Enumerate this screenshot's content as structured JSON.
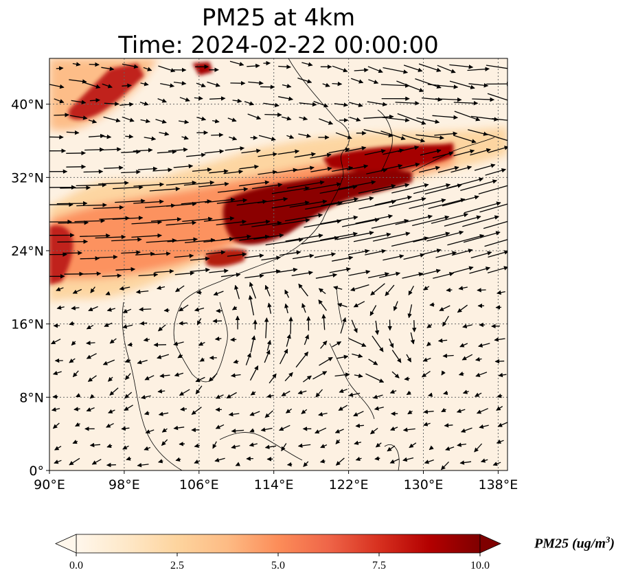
{
  "title_line1": "PM25 at 4km",
  "title_line2": "Time: 2024-02-22 00:00:00",
  "map": {
    "lon_range": [
      90,
      139
    ],
    "lat_range": [
      0,
      45
    ],
    "lon_ticks": [
      {
        "value": 90,
        "label": "90°E"
      },
      {
        "value": 98,
        "label": "98°E"
      },
      {
        "value": 106,
        "label": "106°E"
      },
      {
        "value": 114,
        "label": "114°E"
      },
      {
        "value": 122,
        "label": "122°E"
      },
      {
        "value": 130,
        "label": "130°E"
      },
      {
        "value": 138,
        "label": "138°E"
      }
    ],
    "lat_ticks": [
      {
        "value": 0,
        "label": "0°"
      },
      {
        "value": 8,
        "label": "8°N"
      },
      {
        "value": 16,
        "label": "16°N"
      },
      {
        "value": 24,
        "label": "24°N"
      },
      {
        "value": 32,
        "label": "32°N"
      },
      {
        "value": 40,
        "label": "40°N"
      }
    ],
    "gridlines": true,
    "variable": "PM25",
    "wind_vectors": true
  },
  "colorbar": {
    "label_main": "PM25 (ug/m",
    "label_sup": "3",
    "label_end": ")",
    "ticks": [
      "0.0",
      "2.5",
      "5.0",
      "7.5",
      "10.0"
    ],
    "min": 0,
    "max": 10,
    "colormap": "OrRd",
    "extend": "both",
    "colors": [
      "#fff7ec",
      "#fee8c8",
      "#fdd49e",
      "#fdbb84",
      "#fc8d59",
      "#ef6548",
      "#d7301f",
      "#b30000",
      "#7f0000"
    ]
  }
}
